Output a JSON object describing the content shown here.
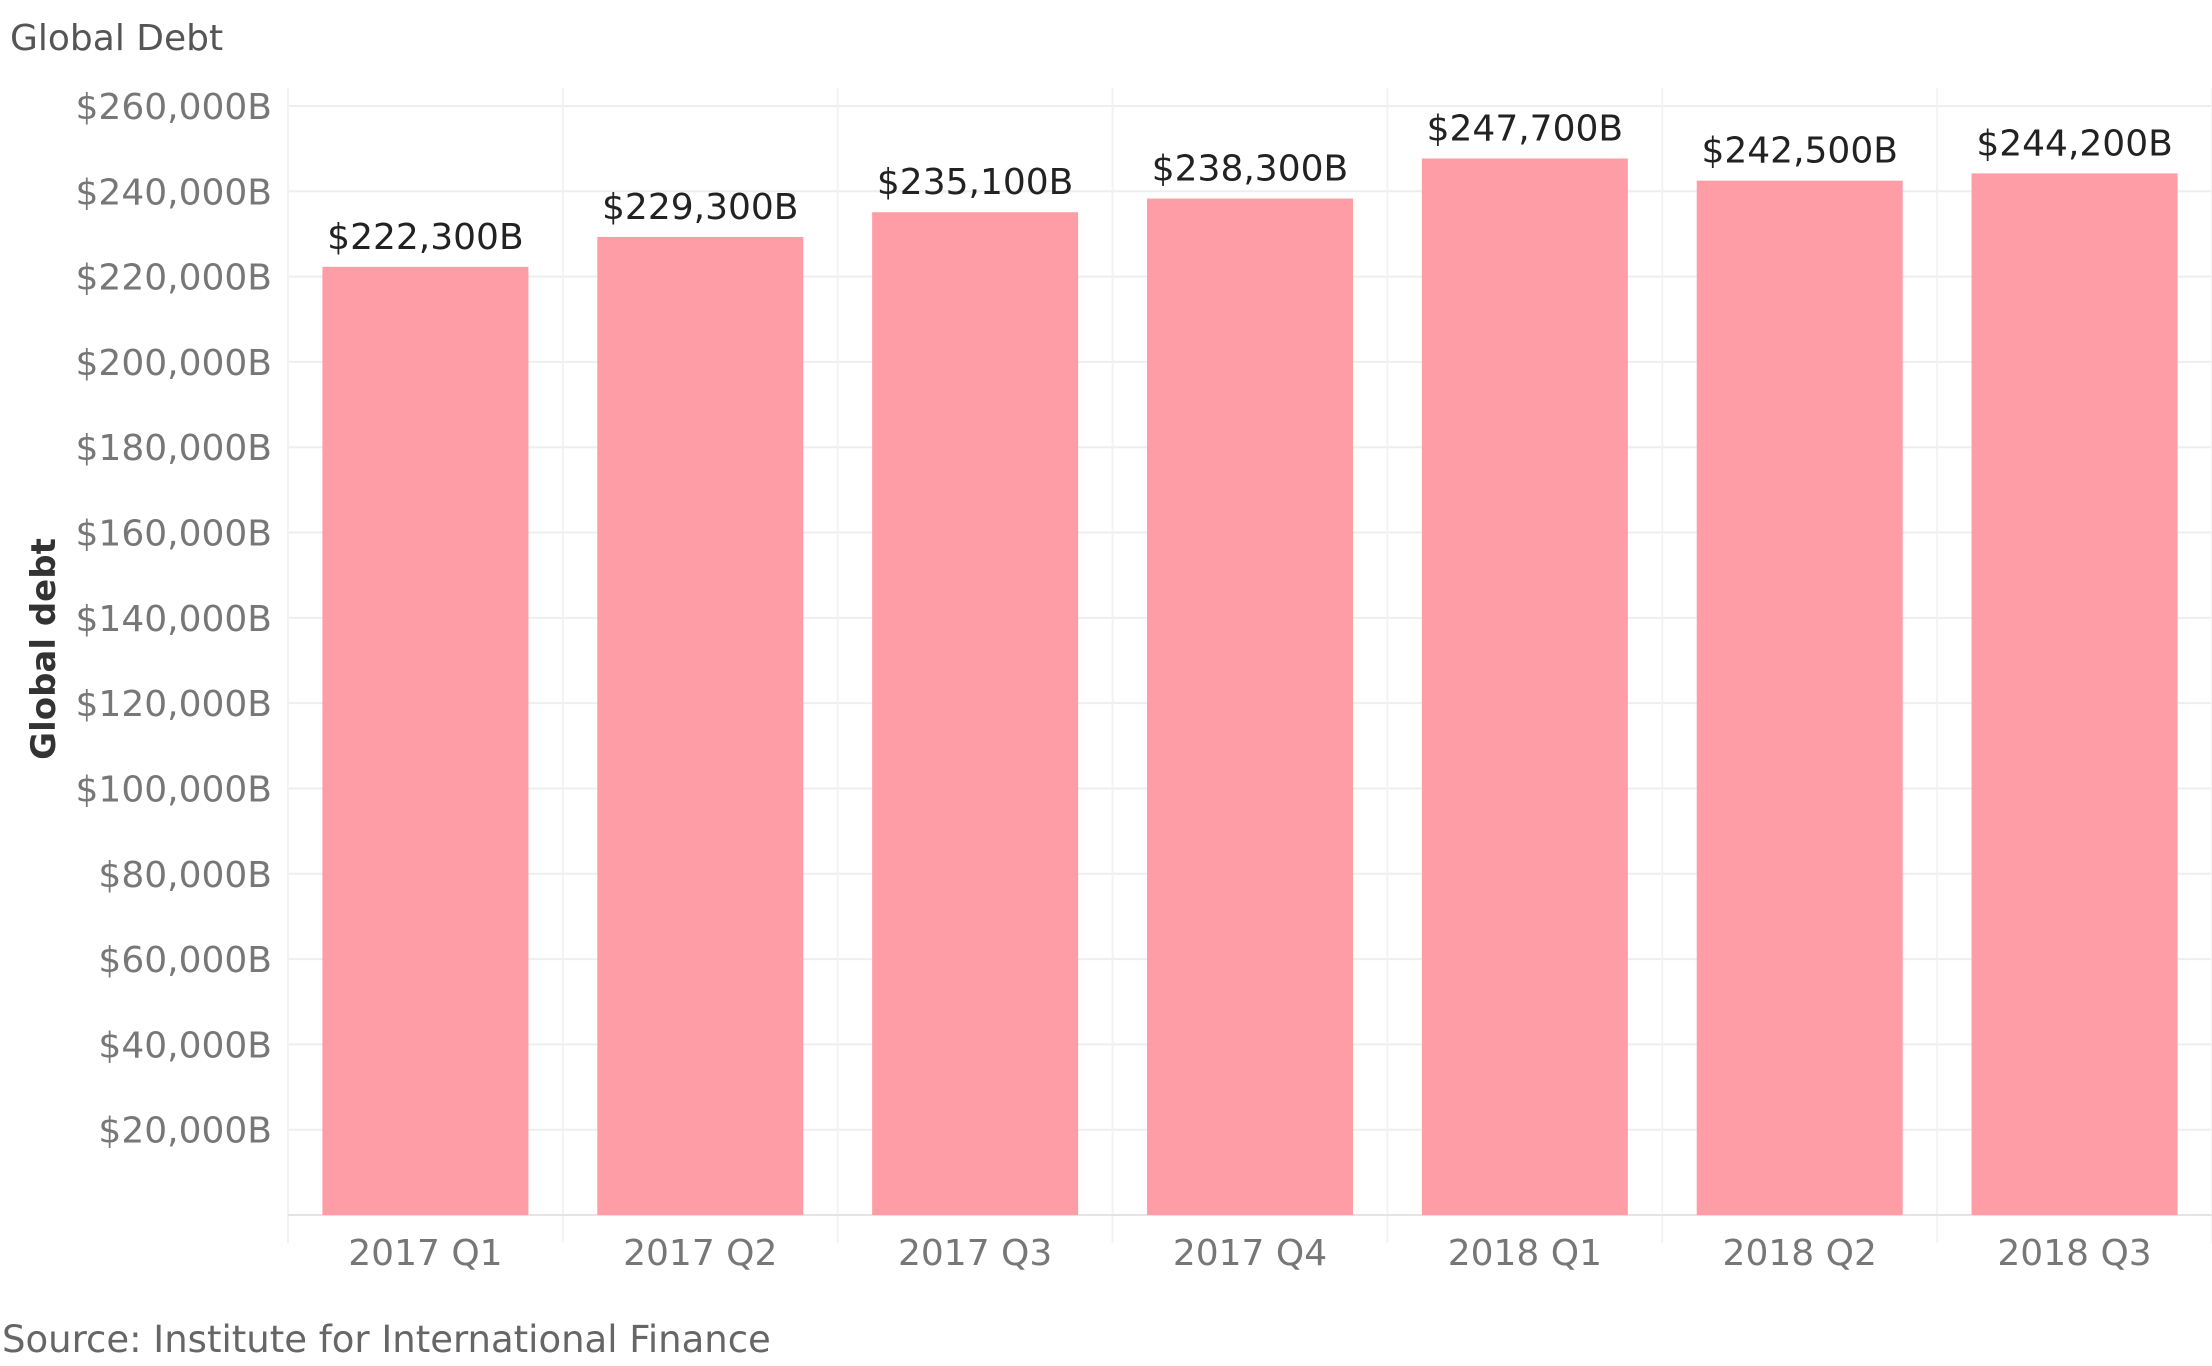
{
  "title": "Global Debt",
  "source": "Source: Institute for International Finance",
  "chart_data": {
    "type": "bar",
    "title": "Global Debt",
    "xlabel": "",
    "ylabel": "Global debt",
    "categories": [
      "2017 Q1",
      "2017 Q2",
      "2017 Q3",
      "2017 Q4",
      "2018 Q1",
      "2018 Q2",
      "2018 Q3"
    ],
    "values": [
      222300,
      229300,
      235100,
      238300,
      247700,
      242500,
      244200
    ],
    "data_labels": [
      "$222,300B",
      "$229,300B",
      "$235,100B",
      "$238,300B",
      "$247,700B",
      "$242,500B",
      "$244,200B"
    ],
    "y_ticks": [
      20000,
      40000,
      60000,
      80000,
      100000,
      120000,
      140000,
      160000,
      180000,
      200000,
      220000,
      240000,
      260000
    ],
    "y_tick_labels": [
      "$20,000B",
      "$40,000B",
      "$60,000B",
      "$80,000B",
      "$100,000B",
      "$120,000B",
      "$140,000B",
      "$160,000B",
      "$180,000B",
      "$200,000B",
      "$220,000B",
      "$240,000B",
      "$260,000B"
    ],
    "ylim": [
      0,
      260000
    ],
    "grid": true,
    "bar_color": "#FF9DA7",
    "unit": "Billions USD"
  }
}
